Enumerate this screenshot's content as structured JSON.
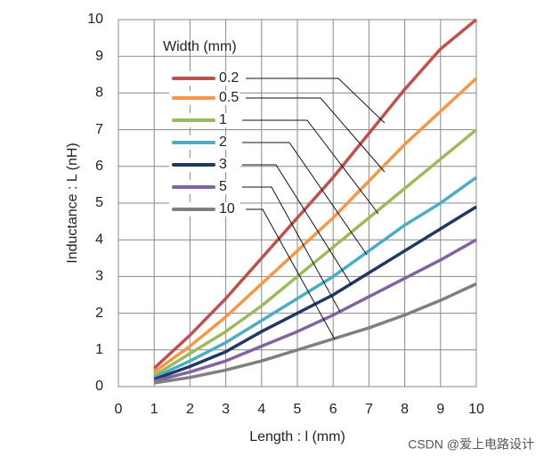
{
  "chart_data": {
    "type": "line",
    "x_label": "Length : l (mm)",
    "y_label": "Inductance : L (nH)",
    "legend_title": "Width (mm)",
    "watermark": "CSDN @爱上电路设计",
    "x": [
      1,
      2,
      3,
      4,
      5,
      6,
      7,
      8,
      9,
      10
    ],
    "xlim": [
      0,
      10
    ],
    "xticks": [
      0,
      1,
      2,
      3,
      4,
      5,
      6,
      7,
      8,
      9,
      10
    ],
    "ylim": [
      0,
      10
    ],
    "yticks": [
      0,
      1,
      2,
      3,
      4,
      5,
      6,
      7,
      8,
      9,
      10
    ],
    "grid": true,
    "series": [
      {
        "name": "0.2",
        "color": "#c0504d",
        "values": [
          0.5,
          1.4,
          2.4,
          3.5,
          4.6,
          5.7,
          6.9,
          8.1,
          9.2,
          10
        ]
      },
      {
        "name": "0.5",
        "color": "#f79646",
        "values": [
          0.4,
          1.1,
          1.9,
          2.8,
          3.7,
          4.6,
          5.6,
          6.6,
          7.5,
          8.4
        ]
      },
      {
        "name": "1",
        "color": "#9bbb59",
        "values": [
          0.3,
          0.9,
          1.5,
          2.2,
          3.0,
          3.8,
          4.6,
          5.4,
          6.2,
          7.0
        ]
      },
      {
        "name": "2",
        "color": "#4bacc6",
        "values": [
          0.25,
          0.7,
          1.2,
          1.8,
          2.4,
          3.0,
          3.7,
          4.4,
          5.0,
          5.7
        ]
      },
      {
        "name": "3",
        "color": "#1f3864",
        "values": [
          0.2,
          0.55,
          0.95,
          1.5,
          2.0,
          2.5,
          3.1,
          3.7,
          4.3,
          4.9
        ]
      },
      {
        "name": "5",
        "color": "#8064a2",
        "values": [
          0.15,
          0.4,
          0.7,
          1.1,
          1.5,
          1.95,
          2.45,
          2.95,
          3.45,
          4.0
        ]
      },
      {
        "name": "10",
        "color": "#7f7f7f",
        "values": [
          0.1,
          0.25,
          0.45,
          0.7,
          1.0,
          1.3,
          1.6,
          1.95,
          2.35,
          2.8
        ]
      }
    ]
  }
}
